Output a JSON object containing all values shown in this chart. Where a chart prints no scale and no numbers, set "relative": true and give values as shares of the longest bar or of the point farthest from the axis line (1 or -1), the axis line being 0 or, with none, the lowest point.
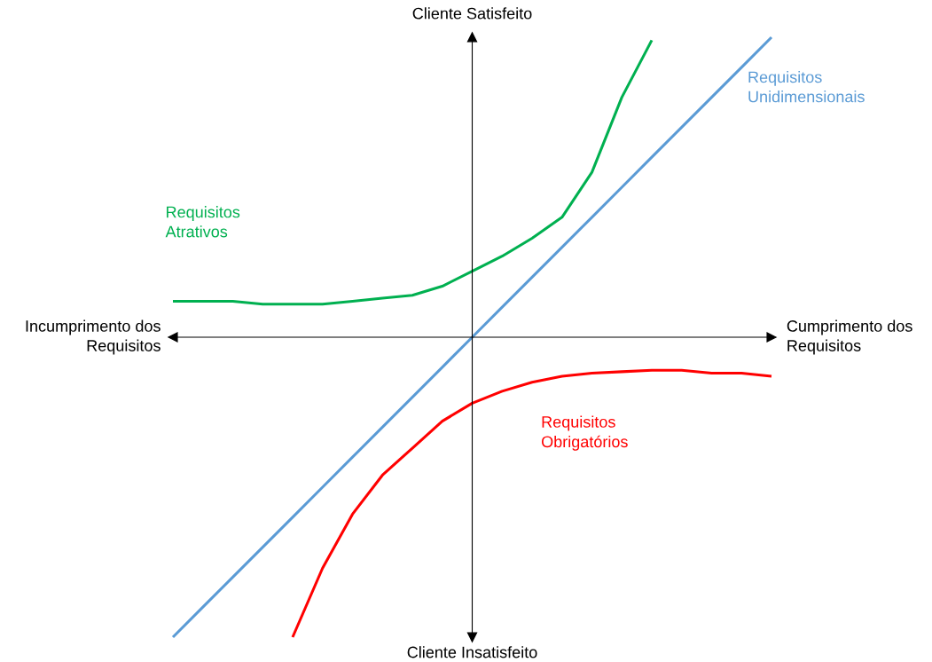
{
  "chart_data": {
    "type": "line",
    "relative": true,
    "legend": false,
    "categories": [
      null,
      null,
      null,
      null,
      null,
      null,
      null,
      null,
      null,
      null,
      null,
      null,
      null,
      null,
      null,
      null,
      null,
      null,
      null,
      null,
      null
    ],
    "series": [
      {
        "name": "Requisitos\nAtrativos",
        "color": "#00b050",
        "values": [
          0.12,
          0.12,
          0.12,
          0.11,
          0.11,
          0.11,
          0.12,
          0.13,
          0.14,
          0.17,
          0.22,
          0.27,
          0.33,
          0.4,
          0.55,
          0.8,
          0.99,
          null,
          null,
          null,
          null
        ]
      },
      {
        "name": "Requisitos\nUnidimensionais",
        "color": "#5b9bd5",
        "values": [
          -1.0,
          -0.9,
          -0.8,
          -0.7,
          -0.6,
          -0.5,
          -0.4,
          -0.3,
          -0.2,
          -0.1,
          0.0,
          0.1,
          0.2,
          0.3,
          0.4,
          0.5,
          0.6,
          0.7,
          0.8,
          0.9,
          1.0
        ]
      },
      {
        "name": "Requisitos\nObrigatórios",
        "color": "#ff0000",
        "values": [
          null,
          null,
          null,
          null,
          -1.0,
          -0.77,
          -0.59,
          -0.46,
          -0.37,
          -0.28,
          -0.22,
          -0.18,
          -0.15,
          -0.13,
          -0.12,
          -0.115,
          -0.11,
          -0.11,
          -0.12,
          -0.12,
          -0.13
        ]
      }
    ],
    "annotations": [
      "Cliente Satisfeito",
      "Cliente Insatisfeito",
      "Incumprimento dos\nRequisitos",
      "Cumprimento dos\nRequisitos"
    ]
  }
}
